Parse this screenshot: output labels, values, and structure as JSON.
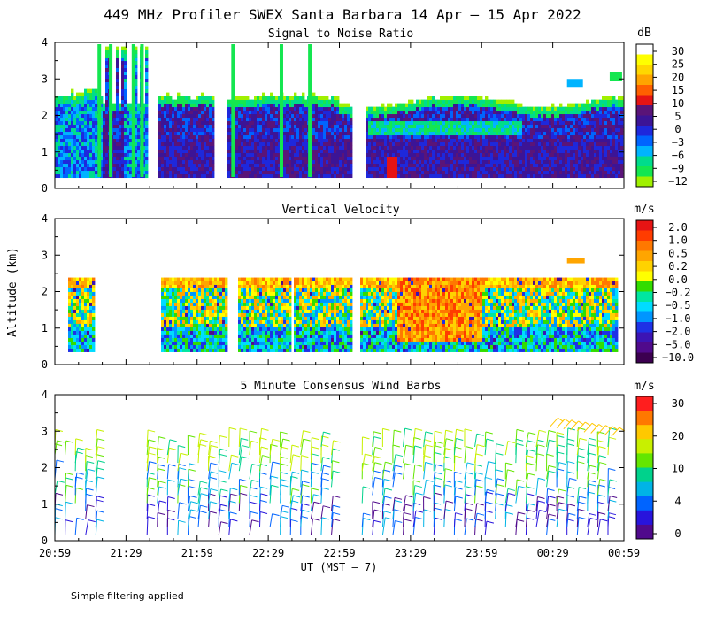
{
  "title": "449 MHz Profiler SWEX Santa Barbara 14 Apr – 15 Apr 2022",
  "ylabel": "Altitude (km)",
  "xlabel": "UT  (MST – 7)",
  "footnote": "Simple filtering applied",
  "colors": {
    "background": "#ffffff",
    "axis": "#000000"
  },
  "chart_data": [
    {
      "type": "heatmap",
      "title": "Signal to Noise Ratio",
      "unit": "dB",
      "ylim": [
        0,
        4
      ],
      "yticks": [
        "0",
        "1",
        "2",
        "3",
        "4"
      ],
      "xticks": [
        "20:59",
        "21:29",
        "21:59",
        "22:29",
        "22:59",
        "23:29",
        "23:59",
        "00:29",
        "00:59"
      ],
      "colorbar": {
        "labels": [
          "30",
          "25",
          "20",
          "15",
          "10",
          "5",
          "0",
          "−3",
          "−6",
          "−9",
          "−12"
        ],
        "colors": [
          "#ffffff",
          "#ffff00",
          "#ffd700",
          "#ffa500",
          "#ff6000",
          "#e61414",
          "#5a1478",
          "#3c1496",
          "#1e28dc",
          "#0064ff",
          "#00b4ff",
          "#00dc8c",
          "#14e650",
          "#a0f000"
        ]
      }
    },
    {
      "type": "heatmap",
      "title": "Vertical Velocity",
      "unit": "m/s",
      "ylim": [
        0,
        4
      ],
      "yticks": [
        "0",
        "1",
        "2",
        "3",
        "4"
      ],
      "xticks": [
        "20:59",
        "21:29",
        "21:59",
        "22:29",
        "22:59",
        "23:29",
        "23:59",
        "00:29",
        "00:59"
      ],
      "colorbar": {
        "labels": [
          "2.0",
          "1.0",
          "0.5",
          "0.2",
          "0.0",
          "−0.2",
          "−0.5",
          "−1.0",
          "−2.0",
          "−5.0",
          "−10.0"
        ],
        "colors": [
          "#e61414",
          "#ff3c00",
          "#ff7800",
          "#ffa500",
          "#ffd200",
          "#ffff00",
          "#32dc00",
          "#00e6a0",
          "#00dcff",
          "#0096ff",
          "#1e32e6",
          "#3c14b4",
          "#500a8c",
          "#3c0050"
        ]
      }
    },
    {
      "type": "scatter",
      "title": "5 Minute Consensus Wind Barbs",
      "unit": "m/s",
      "ylim": [
        0,
        4
      ],
      "yticks": [
        "0",
        "1",
        "2",
        "3",
        "4"
      ],
      "xticks": [
        "20:59",
        "21:29",
        "21:59",
        "22:29",
        "22:59",
        "23:29",
        "23:59",
        "00:29",
        "00:59"
      ],
      "colorbar": {
        "labels": [
          "30",
          "20",
          "10",
          "4",
          "0"
        ],
        "colors": [
          "#ff1e1e",
          "#ff7800",
          "#ffc800",
          "#c8f000",
          "#64e600",
          "#00d28c",
          "#00b4e6",
          "#0064ff",
          "#2814dc",
          "#500a8c"
        ]
      }
    }
  ]
}
